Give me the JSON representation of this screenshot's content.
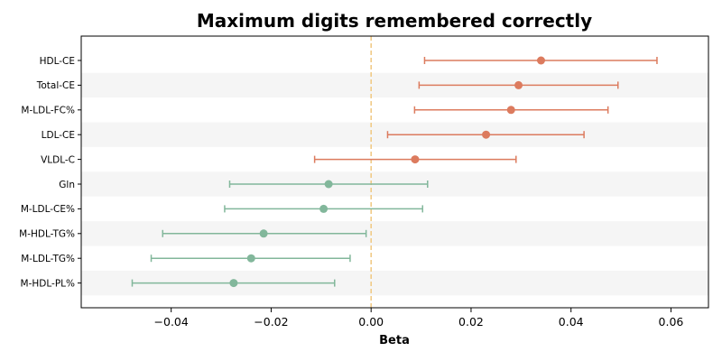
{
  "chart_data": {
    "type": "forest",
    "title": "Maximum digits remembered correctly",
    "xlabel": "Beta",
    "ylabel": "",
    "xlim": [
      -0.058,
      0.0675
    ],
    "xticks": [
      -0.04,
      -0.02,
      0.0,
      0.02,
      0.04,
      0.06
    ],
    "xtick_labels": [
      "−0.04",
      "−0.02",
      "0.00",
      "0.02",
      "0.04",
      "0.06"
    ],
    "reference_line": 0.0,
    "grid": false,
    "row_banding": true,
    "colors": {
      "positive": "#dc7b5e",
      "negative": "#82b79b",
      "reference": "#f0c780",
      "band": "#f5f5f5"
    },
    "rows": [
      {
        "label": "HDL-CE",
        "beta": 0.034,
        "ci_low": 0.0107,
        "ci_high": 0.0572
      },
      {
        "label": "Total-CE",
        "beta": 0.0295,
        "ci_low": 0.0096,
        "ci_high": 0.0494
      },
      {
        "label": "M-LDL-FC%",
        "beta": 0.028,
        "ci_low": 0.0087,
        "ci_high": 0.0474
      },
      {
        "label": "LDL-CE",
        "beta": 0.023,
        "ci_low": 0.0033,
        "ci_high": 0.0426
      },
      {
        "label": "VLDL-C",
        "beta": 0.0088,
        "ci_low": -0.0113,
        "ci_high": 0.029
      },
      {
        "label": "Gln",
        "beta": -0.0085,
        "ci_low": -0.0283,
        "ci_high": 0.0113
      },
      {
        "label": "M-LDL-CE%",
        "beta": -0.0095,
        "ci_low": -0.0293,
        "ci_high": 0.0103
      },
      {
        "label": "M-HDL-TG%",
        "beta": -0.0215,
        "ci_low": -0.0417,
        "ci_high": -0.001
      },
      {
        "label": "M-LDL-TG%",
        "beta": -0.024,
        "ci_low": -0.044,
        "ci_high": -0.0042
      },
      {
        "label": "M-HDL-PL%",
        "beta": -0.0275,
        "ci_low": -0.0478,
        "ci_high": -0.0073
      }
    ]
  }
}
